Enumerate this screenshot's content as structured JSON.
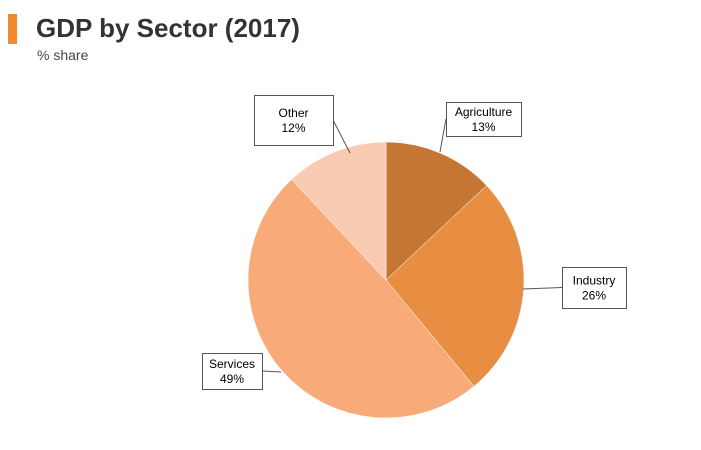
{
  "header": {
    "title": "GDP by Sector (2017)",
    "subtitle": "% share",
    "accent_color": "#f08a2e"
  },
  "chart_data": {
    "type": "pie",
    "title": "GDP by Sector (2017)",
    "subtitle": "% share",
    "slices": [
      {
        "label": "Agriculture",
        "value": 13,
        "display": "13%",
        "color": "#c57633"
      },
      {
        "label": "Industry",
        "value": 26,
        "display": "26%",
        "color": "#e88e43"
      },
      {
        "label": "Services",
        "value": 49,
        "display": "49%",
        "color": "#f8ab78"
      },
      {
        "label": "Other",
        "value": 12,
        "display": "12%",
        "color": "#f9cbb3"
      }
    ],
    "start_angle": "12 o'clock",
    "direction": "clockwise",
    "labels": "callout boxes"
  }
}
